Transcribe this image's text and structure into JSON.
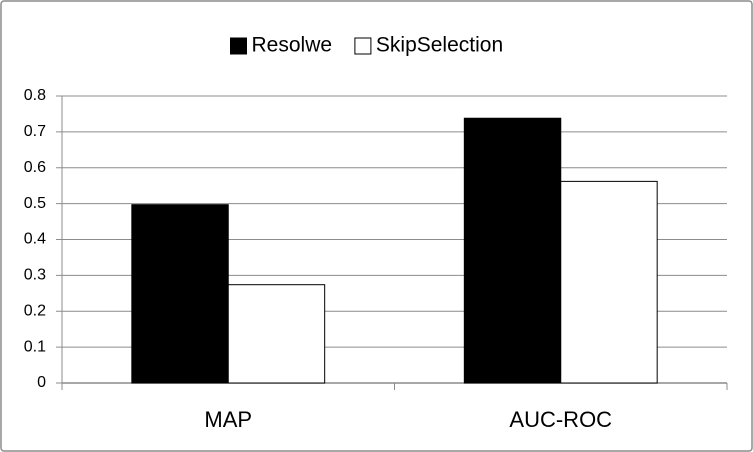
{
  "chart_data": {
    "type": "bar",
    "categories": [
      "MAP",
      "AUC-ROC"
    ],
    "series": [
      {
        "name": "Resolwe",
        "color": "#000000",
        "values": [
          0.497,
          0.738
        ]
      },
      {
        "name": "SkipSelection",
        "color": "#ffffff",
        "values": [
          0.274,
          0.562
        ]
      }
    ],
    "ylim": [
      0,
      0.8
    ],
    "yticks": [
      0,
      0.1,
      0.2,
      0.3,
      0.4,
      0.5,
      0.6,
      0.7,
      0.8
    ],
    "grid": true,
    "legend": "top"
  }
}
